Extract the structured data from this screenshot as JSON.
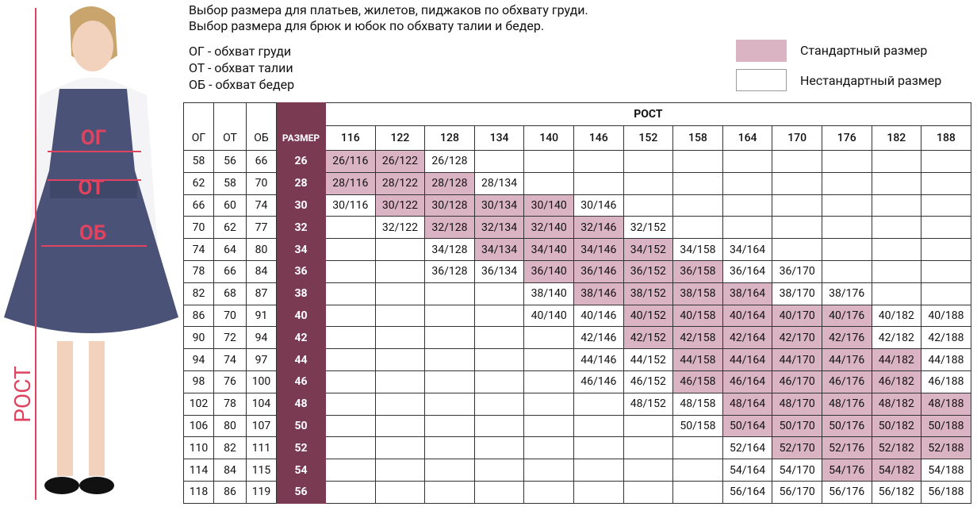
{
  "header": {
    "line1": "Выбор размера для платьев, жилетов, пиджаков по обхвату груди.",
    "line2": "Выбор размера для брюк и юбок по обхвату талии и бедер."
  },
  "abbreviations": [
    "ОГ - обхват груди",
    "ОТ - обхват талии",
    "ОБ - обхват бедер"
  ],
  "legend": [
    {
      "label": "Стандартный размер",
      "color": "#dbb4c3"
    },
    {
      "label": "Нестандартный размер",
      "color": "#ffffff"
    }
  ],
  "photo_labels": {
    "chest": "ОГ",
    "waist": "ОТ",
    "hips": "ОБ",
    "height": "РОСТ"
  },
  "table": {
    "columns": [
      "ОГ",
      "ОТ",
      "ОБ",
      "РАЗМЕР"
    ],
    "height_title": "РОСТ",
    "size_color": "#7a3a52",
    "heights": [
      116,
      122,
      128,
      134,
      140,
      146,
      152,
      158,
      164,
      170,
      176,
      182,
      188
    ],
    "rows": [
      {
        "og": 58,
        "ot": 56,
        "ob": 66,
        "size": 26,
        "cells": [
          {
            "text": "26/116",
            "standard": true
          },
          {
            "text": "26/122",
            "standard": true
          },
          {
            "text": "26/128",
            "standard": false
          },
          null,
          null,
          null,
          null,
          null,
          null,
          null,
          null,
          null,
          null
        ]
      },
      {
        "og": 62,
        "ot": 58,
        "ob": 70,
        "size": 28,
        "cells": [
          {
            "text": "28/116",
            "standard": true
          },
          {
            "text": "28/122",
            "standard": true
          },
          {
            "text": "28/128",
            "standard": true
          },
          {
            "text": "28/134",
            "standard": false
          },
          null,
          null,
          null,
          null,
          null,
          null,
          null,
          null,
          null
        ]
      },
      {
        "og": 66,
        "ot": 60,
        "ob": 74,
        "size": 30,
        "cells": [
          {
            "text": "30/116",
            "standard": false
          },
          {
            "text": "30/122",
            "standard": true
          },
          {
            "text": "30/128",
            "standard": true
          },
          {
            "text": "30/134",
            "standard": true
          },
          {
            "text": "30/140",
            "standard": true
          },
          {
            "text": "30/146",
            "standard": false
          },
          null,
          null,
          null,
          null,
          null,
          null,
          null
        ]
      },
      {
        "og": 70,
        "ot": 62,
        "ob": 77,
        "size": 32,
        "cells": [
          null,
          {
            "text": "32/122",
            "standard": false
          },
          {
            "text": "32/128",
            "standard": true
          },
          {
            "text": "32/134",
            "standard": true
          },
          {
            "text": "32/140",
            "standard": true
          },
          {
            "text": "32/146",
            "standard": true
          },
          {
            "text": "32/152",
            "standard": false
          },
          null,
          null,
          null,
          null,
          null,
          null
        ]
      },
      {
        "og": 74,
        "ot": 64,
        "ob": 80,
        "size": 34,
        "cells": [
          null,
          null,
          {
            "text": "34/128",
            "standard": false
          },
          {
            "text": "34/134",
            "standard": true
          },
          {
            "text": "34/140",
            "standard": true
          },
          {
            "text": "34/146",
            "standard": true
          },
          {
            "text": "34/152",
            "standard": true
          },
          {
            "text": "34/158",
            "standard": false
          },
          {
            "text": "34/164",
            "standard": false
          },
          null,
          null,
          null,
          null
        ]
      },
      {
        "og": 78,
        "ot": 66,
        "ob": 84,
        "size": 36,
        "cells": [
          null,
          null,
          {
            "text": "36/128",
            "standard": false
          },
          {
            "text": "36/134",
            "standard": false
          },
          {
            "text": "36/140",
            "standard": true
          },
          {
            "text": "36/146",
            "standard": true
          },
          {
            "text": "36/152",
            "standard": true
          },
          {
            "text": "36/158",
            "standard": true
          },
          {
            "text": "36/164",
            "standard": false
          },
          {
            "text": "36/170",
            "standard": false
          },
          null,
          null,
          null
        ]
      },
      {
        "og": 82,
        "ot": 68,
        "ob": 87,
        "size": 38,
        "cells": [
          null,
          null,
          null,
          null,
          {
            "text": "38/140",
            "standard": false
          },
          {
            "text": "38/146",
            "standard": true
          },
          {
            "text": "38/152",
            "standard": true
          },
          {
            "text": "38/158",
            "standard": true
          },
          {
            "text": "38/164",
            "standard": true
          },
          {
            "text": "38/170",
            "standard": false
          },
          {
            "text": "38/176",
            "standard": false
          },
          null,
          null
        ]
      },
      {
        "og": 86,
        "ot": 70,
        "ob": 91,
        "size": 40,
        "cells": [
          null,
          null,
          null,
          null,
          {
            "text": "40/140",
            "standard": false
          },
          {
            "text": "40/146",
            "standard": false
          },
          {
            "text": "40/152",
            "standard": true
          },
          {
            "text": "40/158",
            "standard": true
          },
          {
            "text": "40/164",
            "standard": true
          },
          {
            "text": "40/170",
            "standard": true
          },
          {
            "text": "40/176",
            "standard": true
          },
          {
            "text": "40/182",
            "standard": false
          },
          {
            "text": "40/188",
            "standard": false
          }
        ]
      },
      {
        "og": 90,
        "ot": 72,
        "ob": 94,
        "size": 42,
        "cells": [
          null,
          null,
          null,
          null,
          null,
          {
            "text": "42/146",
            "standard": false
          },
          {
            "text": "42/152",
            "standard": true
          },
          {
            "text": "42/158",
            "standard": true
          },
          {
            "text": "42/164",
            "standard": true
          },
          {
            "text": "42/170",
            "standard": true
          },
          {
            "text": "42/176",
            "standard": true
          },
          {
            "text": "42/182",
            "standard": false
          },
          {
            "text": "42/188",
            "standard": false
          }
        ]
      },
      {
        "og": 94,
        "ot": 74,
        "ob": 97,
        "size": 44,
        "cells": [
          null,
          null,
          null,
          null,
          null,
          {
            "text": "44/146",
            "standard": false
          },
          {
            "text": "44/152",
            "standard": false
          },
          {
            "text": "44/158",
            "standard": true
          },
          {
            "text": "44/164",
            "standard": true
          },
          {
            "text": "44/170",
            "standard": true
          },
          {
            "text": "44/176",
            "standard": true
          },
          {
            "text": "44/182",
            "standard": true
          },
          {
            "text": "44/188",
            "standard": false
          }
        ]
      },
      {
        "og": 98,
        "ot": 76,
        "ob": 100,
        "size": 46,
        "cells": [
          null,
          null,
          null,
          null,
          null,
          {
            "text": "46/146",
            "standard": false
          },
          {
            "text": "46/152",
            "standard": false
          },
          {
            "text": "46/158",
            "standard": true
          },
          {
            "text": "46/164",
            "standard": true
          },
          {
            "text": "46/170",
            "standard": true
          },
          {
            "text": "46/176",
            "standard": true
          },
          {
            "text": "46/182",
            "standard": true
          },
          {
            "text": "46/188",
            "standard": false
          }
        ]
      },
      {
        "og": 102,
        "ot": 78,
        "ob": 104,
        "size": 48,
        "cells": [
          null,
          null,
          null,
          null,
          null,
          null,
          {
            "text": "48/152",
            "standard": false
          },
          {
            "text": "48/158",
            "standard": false
          },
          {
            "text": "48/164",
            "standard": true
          },
          {
            "text": "48/170",
            "standard": true
          },
          {
            "text": "48/176",
            "standard": true
          },
          {
            "text": "48/182",
            "standard": true
          },
          {
            "text": "48/188",
            "standard": true
          }
        ]
      },
      {
        "og": 106,
        "ot": 80,
        "ob": 107,
        "size": 50,
        "cells": [
          null,
          null,
          null,
          null,
          null,
          null,
          null,
          {
            "text": "50/158",
            "standard": false
          },
          {
            "text": "50/164",
            "standard": true
          },
          {
            "text": "50/170",
            "standard": true
          },
          {
            "text": "50/176",
            "standard": true
          },
          {
            "text": "50/182",
            "standard": true
          },
          {
            "text": "50/188",
            "standard": true
          }
        ]
      },
      {
        "og": 110,
        "ot": 82,
        "ob": 111,
        "size": 52,
        "cells": [
          null,
          null,
          null,
          null,
          null,
          null,
          null,
          null,
          {
            "text": "52/164",
            "standard": false
          },
          {
            "text": "52/170",
            "standard": true
          },
          {
            "text": "52/176",
            "standard": true
          },
          {
            "text": "52/182",
            "standard": true
          },
          {
            "text": "52/188",
            "standard": true
          }
        ]
      },
      {
        "og": 114,
        "ot": 84,
        "ob": 115,
        "size": 54,
        "cells": [
          null,
          null,
          null,
          null,
          null,
          null,
          null,
          null,
          {
            "text": "54/164",
            "standard": false
          },
          {
            "text": "54/170",
            "standard": false
          },
          {
            "text": "54/176",
            "standard": true
          },
          {
            "text": "54/182",
            "standard": true
          },
          {
            "text": "54/188",
            "standard": false
          }
        ]
      },
      {
        "og": 118,
        "ot": 86,
        "ob": 119,
        "size": 56,
        "cells": [
          null,
          null,
          null,
          null,
          null,
          null,
          null,
          null,
          {
            "text": "56/164",
            "standard": false
          },
          {
            "text": "56/170",
            "standard": false
          },
          {
            "text": "56/176",
            "standard": false
          },
          {
            "text": "56/182",
            "standard": false
          },
          {
            "text": "56/188",
            "standard": false
          }
        ]
      }
    ]
  }
}
